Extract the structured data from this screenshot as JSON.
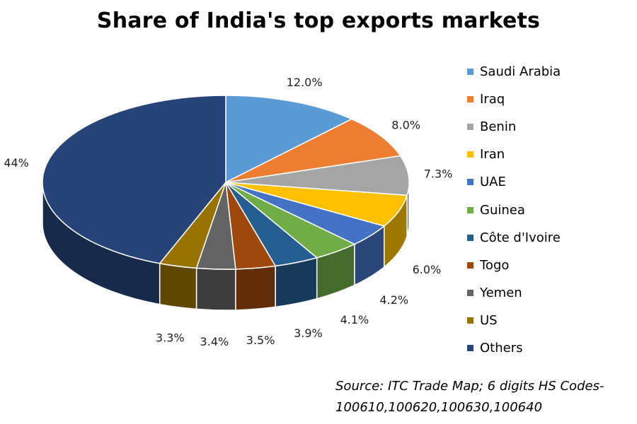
{
  "chart_data": {
    "type": "pie",
    "title": "Share of India's top exports markets",
    "categories": [
      "Saudi Arabia",
      "Iraq",
      "Benin",
      "Iran",
      "UAE",
      "Guinea",
      "Côte d'Ivoire",
      "Togo",
      "Yemen",
      "US",
      "Others"
    ],
    "values": [
      12.0,
      8.0,
      7.3,
      6.0,
      4.2,
      4.1,
      3.9,
      3.5,
      3.4,
      3.3,
      44
    ],
    "data_labels": [
      "12.0%",
      "8.0%",
      "7.3%",
      "6.0%",
      "4.2%",
      "4.1%",
      "3.9%",
      "3.5%",
      "3.4%",
      "3.3%",
      "44%"
    ],
    "colors": [
      "#5B9BD5",
      "#ED7D31",
      "#A5A5A5",
      "#FFC000",
      "#4472C4",
      "#70AD47",
      "#255E91",
      "#9E480E",
      "#636363",
      "#997300",
      "#264478"
    ],
    "legend_position": "right",
    "style": "3d"
  },
  "source_text": {
    "line1": "Source: ITC Trade Map; 6 digits HS Codes-",
    "line2": "100610,100620,100630,100640"
  }
}
